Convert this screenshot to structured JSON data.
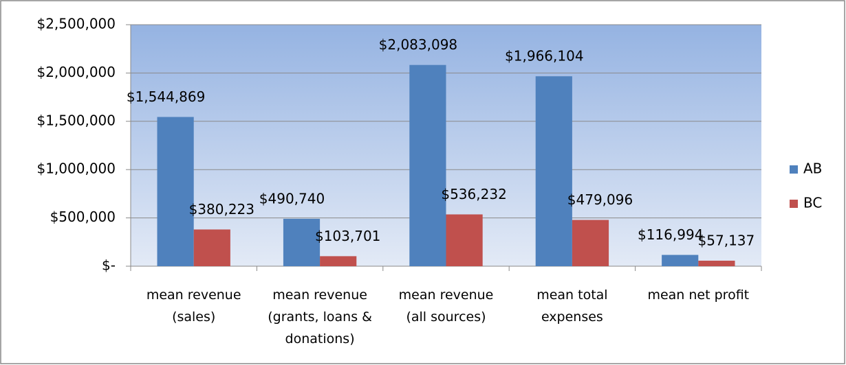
{
  "chart_data": {
    "type": "bar",
    "categories": [
      "mean revenue (sales)",
      "mean revenue (grants, loans & donations)",
      "mean revenue (all sources)",
      "mean total expenses",
      "mean net profit"
    ],
    "series": [
      {
        "name": "AB",
        "color": "#4f81bd",
        "values": [
          1544869,
          490740,
          2083098,
          1966104,
          116994
        ],
        "value_labels": [
          "$1,544,869",
          "$490,740",
          "$2,083,098",
          "$1,966,104",
          "$116,994"
        ]
      },
      {
        "name": "BC",
        "color": "#c0504d",
        "values": [
          380223,
          103701,
          536232,
          479096,
          57137
        ],
        "value_labels": [
          "$380,223",
          "$103,701",
          "$536,232",
          "$479,096",
          "$57,137"
        ]
      }
    ],
    "ylim": [
      0,
      2500000
    ],
    "yticks": [
      {
        "value": 0,
        "label": "$-"
      },
      {
        "value": 500000,
        "label": "$500,000"
      },
      {
        "value": 1000000,
        "label": "$1,000,000"
      },
      {
        "value": 1500000,
        "label": "$1,500,000"
      },
      {
        "value": 2000000,
        "label": "$2,000,000"
      },
      {
        "value": 2500000,
        "label": "$2,500,000"
      }
    ],
    "grid": true,
    "legend": "right"
  }
}
